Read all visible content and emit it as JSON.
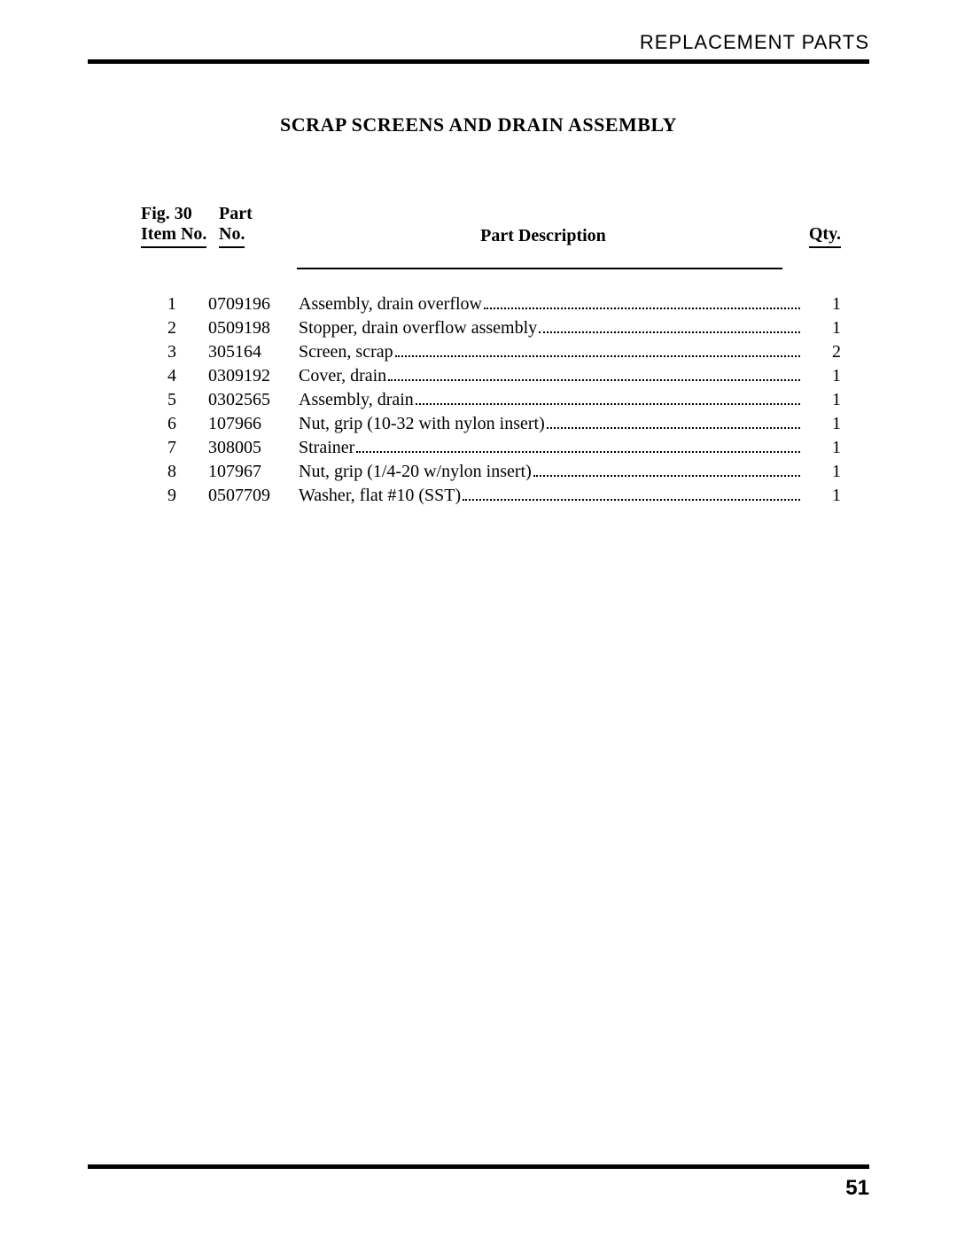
{
  "header": {
    "section": "REPLACEMENT  PARTS"
  },
  "title": "SCRAP SCREENS AND DRAIN ASSEMBLY",
  "columns": {
    "item_line1": "Fig. 30",
    "item_line2": "Item No.",
    "part_line1": "Part",
    "part_line2": "No.",
    "desc": "Part Description",
    "qty": "Qty."
  },
  "rows": [
    {
      "item": "1",
      "part": "0709196",
      "desc": "Assembly, drain overflow",
      "qty": "1"
    },
    {
      "item": "2",
      "part": "0509198",
      "desc": "Stopper, drain overflow assembly",
      "qty": "1"
    },
    {
      "item": "3",
      "part": "305164",
      "desc": "Screen, scrap",
      "qty": "2"
    },
    {
      "item": "4",
      "part": "0309192",
      "desc": "Cover, drain",
      "qty": "1"
    },
    {
      "item": "5",
      "part": "0302565",
      "desc": "Assembly, drain",
      "qty": "1"
    },
    {
      "item": "6",
      "part": "107966",
      "desc": "Nut, grip (10-32 with nylon insert)",
      "qty": "1"
    },
    {
      "item": "7",
      "part": "308005",
      "desc": "Strainer",
      "qty": "1"
    },
    {
      "item": "8",
      "part": "107967",
      "desc": "Nut, grip (1/4-20 w/nylon insert)",
      "qty": "1"
    },
    {
      "item": "9",
      "part": "0507709",
      "desc": "Washer, flat #10 (SST)",
      "qty": "1"
    }
  ],
  "page_number": "51"
}
